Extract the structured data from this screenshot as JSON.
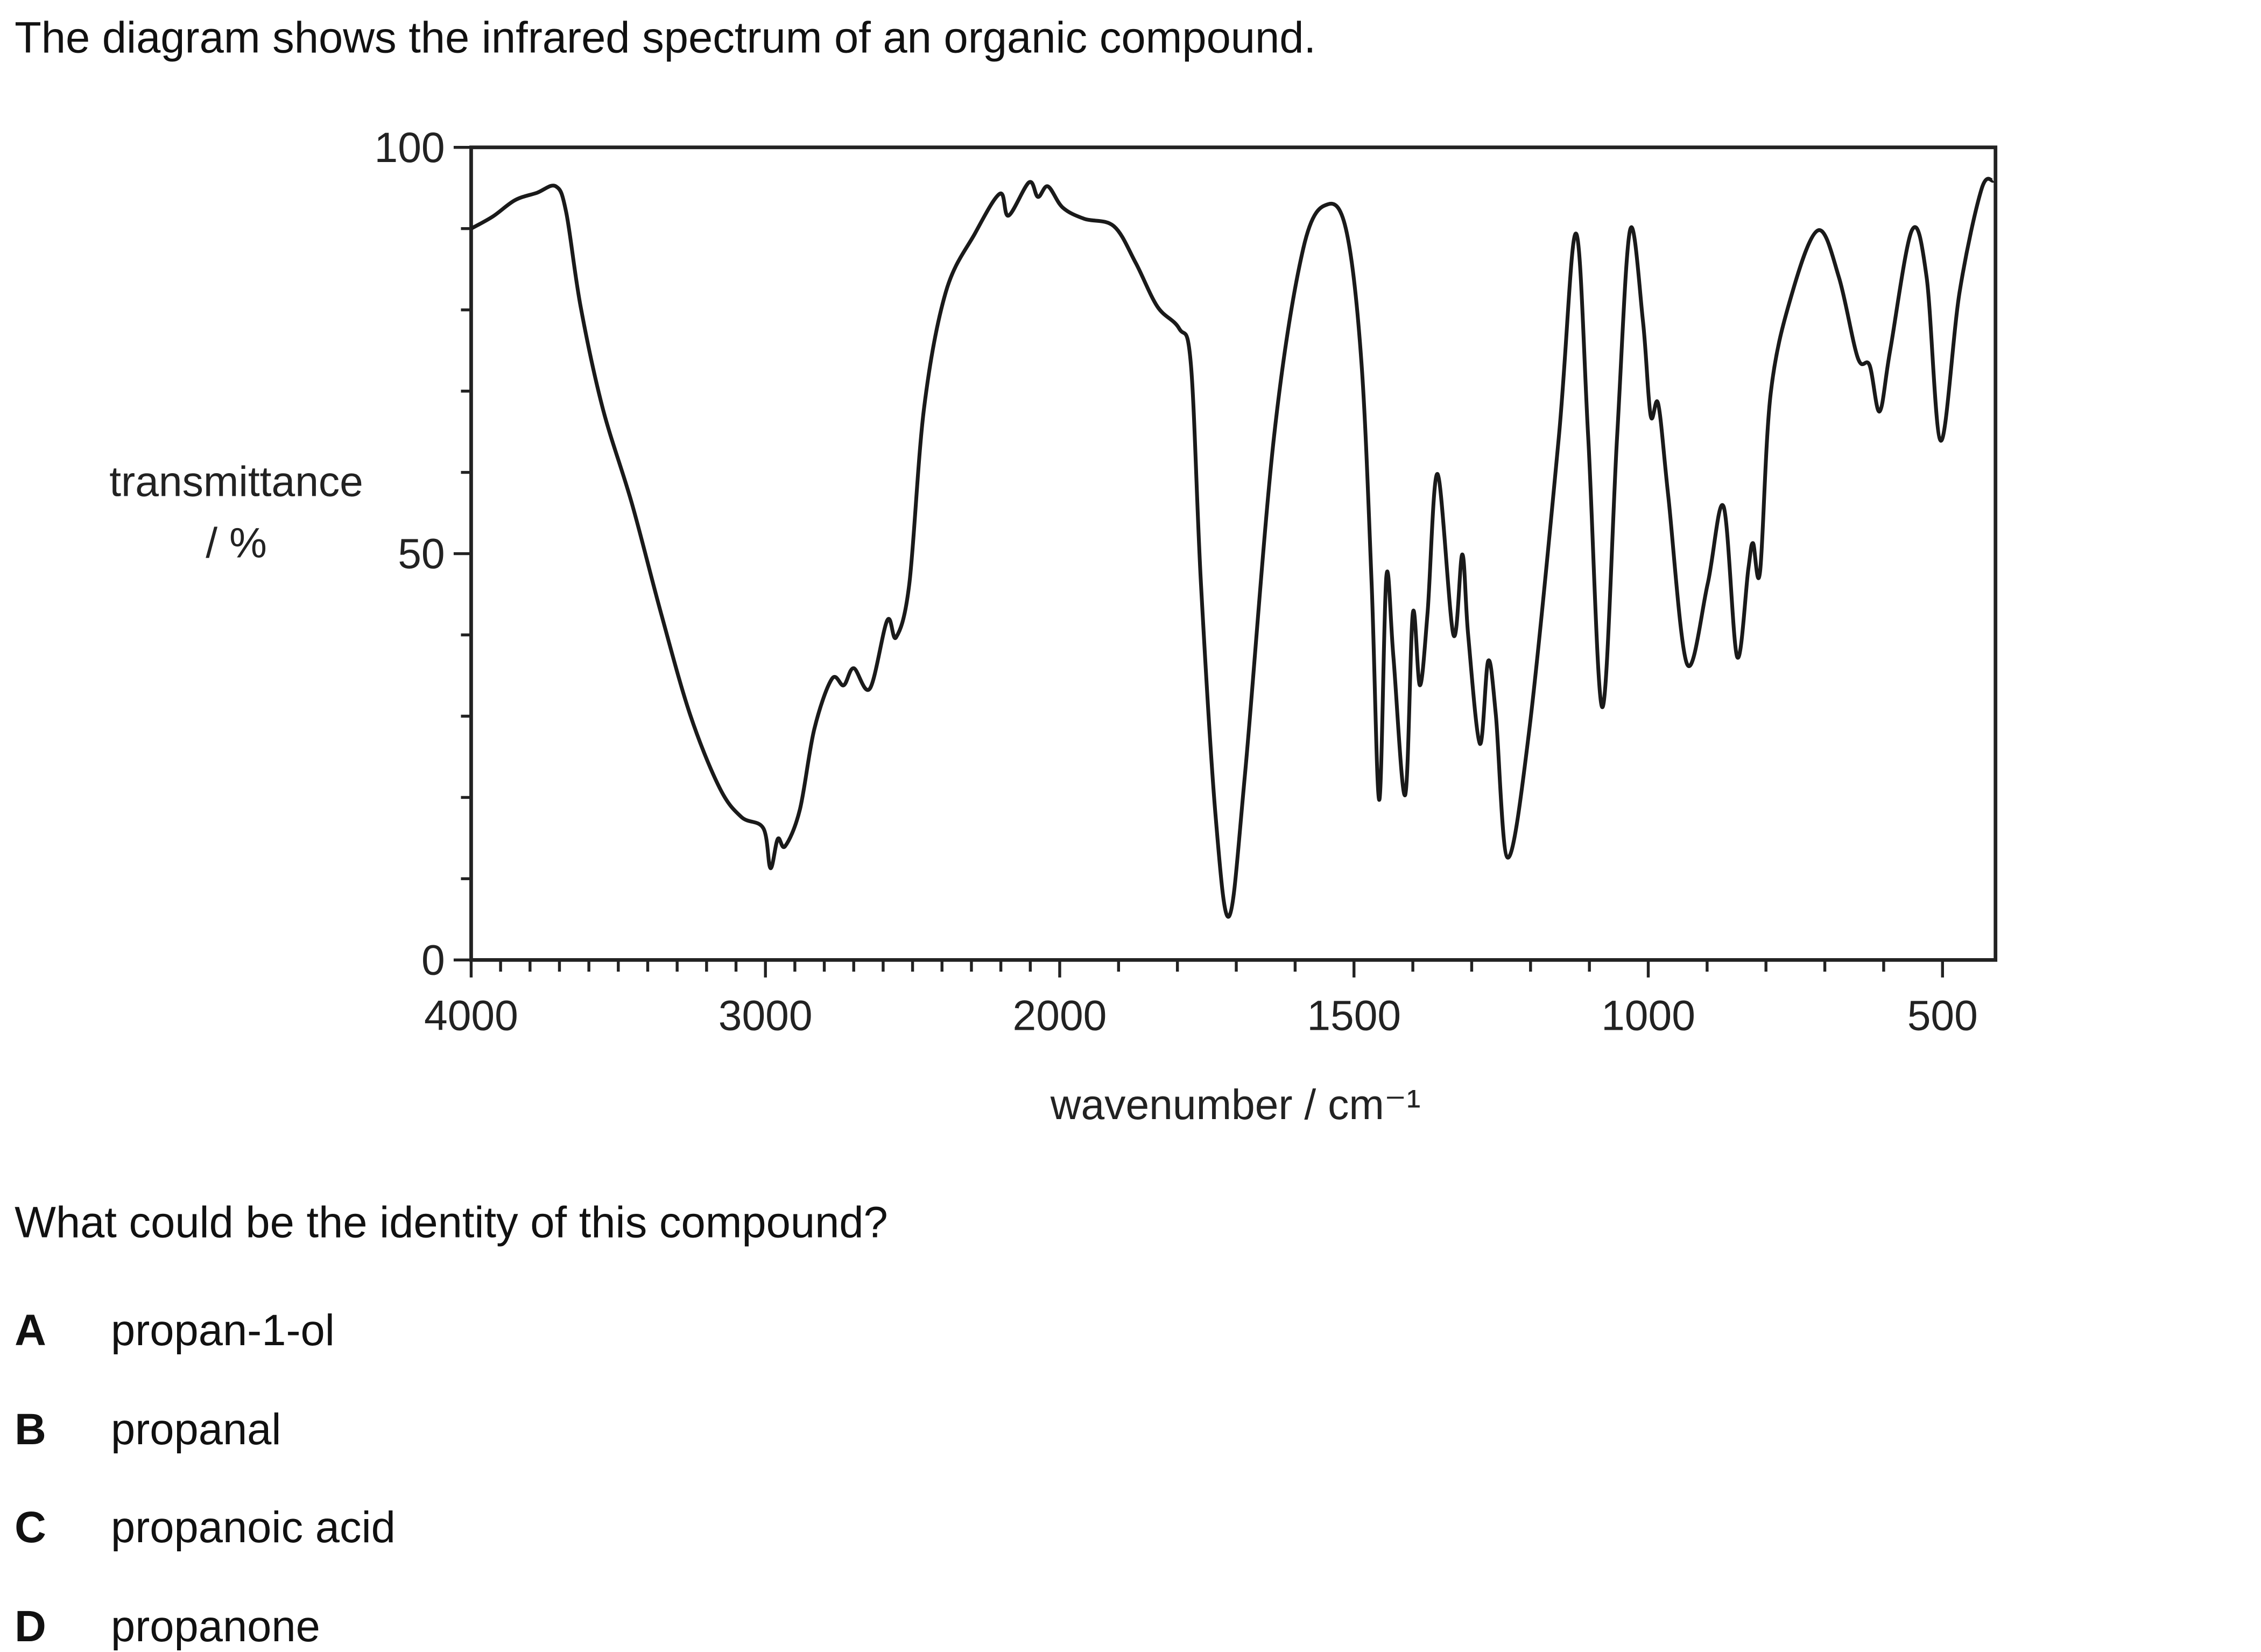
{
  "question": {
    "stem": "The diagram shows the infrared spectrum of an organic compound.",
    "prompt": "What could be the identity of this compound?",
    "options": [
      {
        "letter": "A",
        "text": "propan-1-ol"
      },
      {
        "letter": "B",
        "text": "propanal"
      },
      {
        "letter": "C",
        "text": "propanoic acid"
      },
      {
        "letter": "D",
        "text": "propanone"
      }
    ]
  },
  "chart_data": {
    "type": "line",
    "y_label": "transmittance",
    "y_unit": "/ %",
    "x_label": "wavenumber / cm⁻¹",
    "color": "#1a1a1a",
    "x": [
      4000,
      3926,
      3851,
      3777,
      3712,
      3677,
      3628,
      3553,
      3454,
      3355,
      3256,
      3156,
      3082,
      3007,
      2983,
      2958,
      2933,
      2883,
      2834,
      2774,
      2734,
      2700,
      2645,
      2586,
      2556,
      2511,
      2461,
      2387,
      2288,
      2203,
      2174,
      2104,
      2074,
      2040,
      1995,
      1958,
      1908,
      1871,
      1834,
      1797,
      1777,
      1760,
      1735,
      1712,
      1685,
      1636,
      1586,
      1544,
      1512,
      1487,
      1470,
      1457,
      1445,
      1433,
      1413,
      1400,
      1388,
      1375,
      1358,
      1331,
      1316,
      1306,
      1286,
      1272,
      1259,
      1239,
      1202,
      1152,
      1123,
      1102,
      1078,
      1053,
      1031,
      1009,
      996,
      983,
      966,
      934,
      899,
      872,
      849,
      830,
      822,
      810,
      792,
      755,
      711,
      676,
      644,
      624,
      607,
      589,
      552,
      527,
      503,
      471,
      434,
      414
    ],
    "values": [
      90,
      91.5,
      93.5,
      94.4,
      95.2,
      92,
      80.4,
      67.9,
      56.2,
      42.7,
      30.2,
      21.2,
      17.6,
      16.2,
      11.3,
      14.9,
      14,
      18.5,
      28.4,
      34.6,
      33.8,
      35.9,
      33.4,
      41.8,
      39.7,
      46.3,
      67.9,
      82.2,
      89.4,
      94.3,
      91.6,
      95.7,
      93.9,
      95.2,
      92.6,
      91.2,
      90.3,
      85.8,
      80.4,
      77.7,
      73.2,
      46.3,
      17.6,
      5.4,
      23,
      64.3,
      87.6,
      93,
      89.4,
      73.2,
      46.3,
      19.7,
      47.2,
      37.3,
      20.3,
      42.7,
      33.8,
      42.7,
      59.8,
      40,
      49.9,
      40,
      26.6,
      36.8,
      30.2,
      12.6,
      28.4,
      64.3,
      89.4,
      64.3,
      31.1,
      64.3,
      89.8,
      78.6,
      67,
      68.4,
      57.1,
      36.4,
      46.3,
      55.8,
      37.3,
      48.1,
      51.3,
      47.8,
      69.7,
      82.2,
      89.8,
      84,
      74.1,
      73.2,
      67.5,
      75,
      89.8,
      84,
      63.9,
      82.2,
      94.8,
      95.9
    ],
    "xlim": [
      4000,
      410
    ],
    "ylim": [
      0,
      100
    ],
    "xticks": [
      4000,
      3000,
      2000,
      1500,
      1000,
      500
    ],
    "xminorticks": [
      3900,
      3800,
      3700,
      3600,
      3500,
      3400,
      3300,
      3200,
      3100,
      2900,
      2800,
      2700,
      2600,
      2500,
      2400,
      2300,
      2200,
      2100,
      1900,
      1800,
      1700,
      1600,
      1400,
      1300,
      1200,
      1100,
      900,
      800,
      700,
      600
    ],
    "yticks": [
      0,
      50,
      100
    ],
    "yminorticks": [
      10,
      20,
      30,
      40,
      60,
      70,
      80,
      90
    ],
    "x_scale_break": 2000,
    "x_scale_factor": 2
  }
}
